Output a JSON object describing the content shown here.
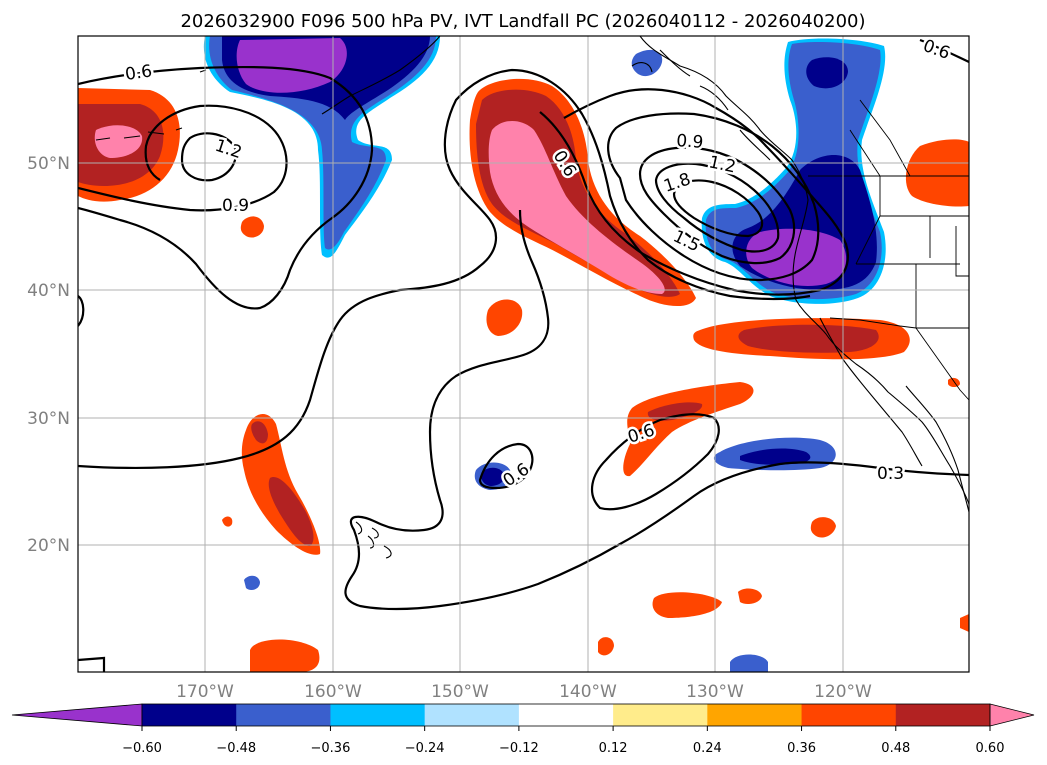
{
  "title": "2026032900 F096 500 hPa PV, IVT Landfall PC (2026040112 - 2026040200)",
  "map": {
    "lat_labels": [
      "50°N",
      "40°N",
      "30°N",
      "20°N"
    ],
    "lon_labels": [
      "170°W",
      "160°W",
      "150°W",
      "140°W",
      "130°W",
      "120°W"
    ],
    "contour_labels": [
      "0.6",
      "1.2",
      "0.9",
      "0.6",
      "0.9",
      "1.2",
      "1.8",
      "1.5",
      "0.6",
      "0.6",
      "0.3",
      "0.6"
    ],
    "colors": {
      "neg_060": "#9932cc",
      "neg_048": "#00008b",
      "neg_036": "#3a5fcd",
      "neg_024": "#00bfff",
      "neg_012": "#b0e2ff",
      "neutral": "#ffffff",
      "pos_012": "#ffec8b",
      "pos_024": "#ffa500",
      "pos_036": "#ff4500",
      "pos_048": "#b22222",
      "pos_060": "#ff82ab"
    }
  },
  "colorbar": {
    "ticks": [
      "−0.60",
      "−0.48",
      "−0.36",
      "−0.24",
      "−0.12",
      "0.12",
      "0.24",
      "0.36",
      "0.48",
      "0.60"
    ],
    "colors": [
      "#9932cc",
      "#00008b",
      "#3a5fcd",
      "#00bfff",
      "#b0e2ff",
      "#ffffff",
      "#ffec8b",
      "#ffa500",
      "#ff4500",
      "#b22222",
      "#ff82ab"
    ]
  }
}
